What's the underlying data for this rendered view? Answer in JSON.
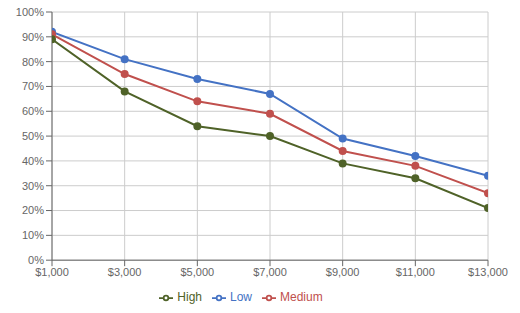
{
  "chart_data": {
    "type": "line",
    "x": [
      1000,
      3000,
      5000,
      7000,
      9000,
      11000,
      13000
    ],
    "series": [
      {
        "name": "Low",
        "color": "#4472C4",
        "values": [
          0.92,
          0.81,
          0.73,
          0.67,
          0.49,
          0.42,
          0.34
        ]
      },
      {
        "name": "Medium",
        "color": "#C0504D",
        "values": [
          0.91,
          0.75,
          0.64,
          0.59,
          0.44,
          0.38,
          0.27
        ]
      },
      {
        "name": "High",
        "color": "#4F6228",
        "values": [
          0.89,
          0.68,
          0.54,
          0.5,
          0.39,
          0.33,
          0.21
        ]
      }
    ],
    "xlim": [
      1000,
      13000
    ],
    "xticks": [
      {
        "value": 1000,
        "label": "$1,000"
      },
      {
        "value": 3000,
        "label": "$3,000"
      },
      {
        "value": 5000,
        "label": "$5,000"
      },
      {
        "value": 7000,
        "label": "$7,000"
      },
      {
        "value": 9000,
        "label": "$9,000"
      },
      {
        "value": 11000,
        "label": "$11,000"
      },
      {
        "value": 13000,
        "label": "$13,000"
      }
    ],
    "ylim": [
      0.0,
      1.0
    ],
    "yticks": [
      {
        "value": 0.0,
        "label": "0%"
      },
      {
        "value": 0.1,
        "label": "10%"
      },
      {
        "value": 0.2,
        "label": "20%"
      },
      {
        "value": 0.3,
        "label": "30%"
      },
      {
        "value": 0.4,
        "label": "40%"
      },
      {
        "value": 0.5,
        "label": "50%"
      },
      {
        "value": 0.6,
        "label": "60%"
      },
      {
        "value": 0.7,
        "label": "70%"
      },
      {
        "value": 0.8,
        "label": "80%"
      },
      {
        "value": 0.9,
        "label": "90%"
      },
      {
        "value": 1.0,
        "label": "100%"
      }
    ],
    "grid": true,
    "legend": "bottom",
    "marker": "circle"
  }
}
